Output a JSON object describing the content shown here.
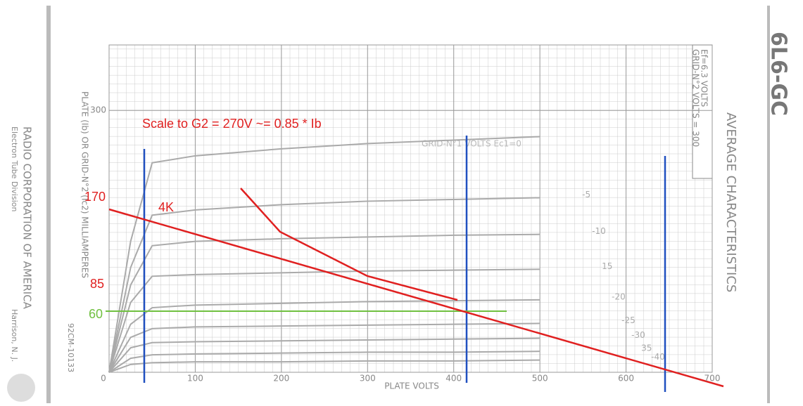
{
  "chart_data": {
    "type": "line",
    "title": "AVERAGE CHARACTERISTICS",
    "tube": "6L6-GC",
    "conditions": [
      "Ef=6.3 VOLTS",
      "GRID-N°2 VOLTS = 300"
    ],
    "x_label": "PLATE VOLTS",
    "y_label": "PLATE (Ib) OR GRID-N°2 (Ic2) MILLIAMPERES",
    "drawing_number": "92CM-10133",
    "maker": [
      "RADIO CORPORATION OF AMERICA",
      "Electron Tube Division",
      "Harrison, N. J."
    ],
    "series_title": "GRID-N°1 VOLTS Ec1=0",
    "xlim": [
      0,
      700
    ],
    "ylim": [
      0,
      375
    ],
    "xticks": [
      0,
      100,
      200,
      300,
      400,
      500,
      600,
      700
    ],
    "yticks": [
      300
    ],
    "x": [
      0,
      25,
      50,
      100,
      200,
      300,
      400,
      500
    ],
    "color": "#aaaaaa",
    "series": [
      {
        "name": "-5",
        "values": [
          0,
          120,
          180,
          186,
          192,
          196,
          198,
          200
        ]
      },
      {
        "name": "-10",
        "values": [
          0,
          100,
          145,
          150,
          153,
          155,
          157,
          158
        ]
      },
      {
        "name": "15",
        "values": [
          0,
          80,
          110,
          112,
          114,
          116,
          117,
          118
        ]
      },
      {
        "name": "-20",
        "values": [
          0,
          55,
          74,
          77,
          79,
          81,
          82,
          83
        ]
      },
      {
        "name": "-25",
        "values": [
          0,
          40,
          50,
          52,
          53,
          54,
          55,
          56
        ]
      },
      {
        "name": "-30",
        "values": [
          0,
          28,
          34,
          35,
          36,
          37,
          38,
          39
        ]
      },
      {
        "name": "35",
        "values": [
          0,
          16,
          20,
          21,
          22,
          23,
          23,
          24
        ]
      },
      {
        "name": "-40",
        "values": [
          0,
          9,
          11,
          12,
          12,
          13,
          13,
          14
        ]
      }
    ],
    "top_curve": [
      0,
      150,
      240,
      248,
      256,
      262,
      266,
      270
    ],
    "annotations": {
      "note": "Scale to G2 = 270V ~= 0.85 * Ib",
      "load": "4K",
      "a": "170",
      "b": "85",
      "c": "60"
    }
  }
}
